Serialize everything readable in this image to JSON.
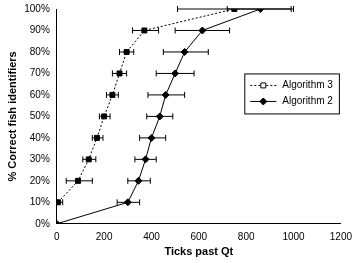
{
  "chart_data": {
    "type": "line",
    "x_label": "Ticks past Qt",
    "y_label": "% Correct fish identifiers",
    "xlim": [
      0,
      1200
    ],
    "xticks": [
      0,
      200,
      400,
      600,
      800,
      1000,
      1200
    ],
    "ylim": [
      0,
      100
    ],
    "yticks": [
      {
        "value": 0,
        "label": "0%"
      },
      {
        "value": 10,
        "label": "10%"
      },
      {
        "value": 20,
        "label": "20%"
      },
      {
        "value": 30,
        "label": "30%"
      },
      {
        "value": 40,
        "label": "40%"
      },
      {
        "value": 50,
        "label": "50%"
      },
      {
        "value": 60,
        "label": "60%"
      },
      {
        "value": 70,
        "label": "70%"
      },
      {
        "value": 80,
        "label": "80%"
      },
      {
        "value": 90,
        "label": "90%"
      },
      {
        "value": 100,
        "label": "100%"
      }
    ],
    "grid": false,
    "legend": "right",
    "series": [
      {
        "name": "Algorithm 3",
        "color": "#000000",
        "marker": "square",
        "line_style": "dotted",
        "x": [
          5,
          90,
          135,
          170,
          200,
          235,
          265,
          295,
          370,
          750
        ],
        "values": [
          10,
          20,
          30,
          40,
          50,
          60,
          70,
          80,
          90,
          100
        ],
        "x_error_low": [
          0,
          40,
          110,
          150,
          180,
          210,
          235,
          265,
          320,
          510
        ],
        "x_error_high": [
          25,
          150,
          165,
          195,
          225,
          260,
          295,
          325,
          430,
          990
        ]
      },
      {
        "name": "Algorithm 2",
        "color": "#000000",
        "marker": "diamond",
        "line_style": "solid",
        "x": [
          0,
          300,
          345,
          375,
          400,
          435,
          460,
          500,
          540,
          615,
          860
        ],
        "values": [
          0,
          10,
          20,
          30,
          40,
          50,
          60,
          70,
          80,
          90,
          100
        ],
        "x_error_low": [
          null,
          255,
          300,
          330,
          350,
          380,
          385,
          420,
          450,
          500,
          720
        ],
        "x_error_high": [
          null,
          350,
          395,
          420,
          460,
          490,
          540,
          580,
          640,
          730,
          1000
        ]
      }
    ]
  }
}
